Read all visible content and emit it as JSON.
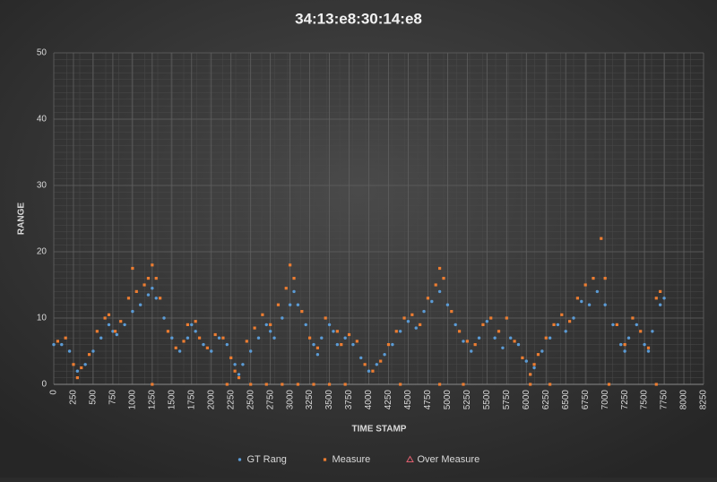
{
  "chart_data": {
    "type": "scatter",
    "title": "34:13:e8:30:14:e8",
    "x_label": "TIME STAMP",
    "y_label": "RANGE",
    "xlim": [
      0,
      8250
    ],
    "xticks": [
      0,
      250,
      500,
      750,
      1000,
      1250,
      1500,
      1750,
      2000,
      2250,
      2500,
      2750,
      3000,
      3250,
      3500,
      3750,
      4000,
      4250,
      4500,
      4750,
      5000,
      5250,
      5500,
      5750,
      6000,
      6250,
      6500,
      6750,
      7000,
      7250,
      7500,
      7750,
      8000,
      8250
    ],
    "ylim": [
      0,
      50
    ],
    "yticks": [
      0,
      10,
      20,
      30,
      40,
      50
    ],
    "grid": true,
    "legend": "bottom",
    "series": [
      {
        "name": "GT Rang",
        "color": "#5b9bd5",
        "marker": "circle",
        "x": [
          0,
          100,
          200,
          300,
          400,
          500,
          600,
          700,
          750,
          800,
          900,
          1000,
          1100,
          1200,
          1250,
          1300,
          1400,
          1500,
          1600,
          1700,
          1750,
          1800,
          1900,
          2000,
          2100,
          2200,
          2300,
          2350,
          2400,
          2500,
          2600,
          2700,
          2750,
          2800,
          2900,
          3000,
          3050,
          3100,
          3200,
          3300,
          3350,
          3400,
          3500,
          3550,
          3600,
          3700,
          3800,
          3900,
          4000,
          4100,
          4200,
          4300,
          4400,
          4500,
          4600,
          4700,
          4800,
          4900,
          5000,
          5100,
          5200,
          5300,
          5400,
          5500,
          5600,
          5700,
          5800,
          5900,
          6000,
          6050,
          6100,
          6200,
          6300,
          6400,
          6500,
          6600,
          6700,
          6800,
          6900,
          7000,
          7100,
          7200,
          7250,
          7300,
          7400,
          7500,
          7550,
          7600,
          7700,
          7750
        ],
        "values": [
          6,
          6,
          5,
          2,
          3,
          5,
          7,
          9,
          8,
          7.5,
          9,
          11,
          12,
          13.5,
          14.5,
          13,
          10,
          7,
          5,
          7,
          9,
          8,
          6,
          5,
          7,
          6,
          3,
          1.5,
          3,
          5,
          7,
          9,
          8,
          7,
          10,
          12,
          14,
          12,
          9,
          6,
          4.5,
          7,
          9,
          8,
          6,
          7,
          6,
          4,
          2,
          3,
          4.5,
          6,
          8,
          9.5,
          8.5,
          11,
          12.5,
          14,
          12,
          9,
          6.5,
          5,
          7,
          9.5,
          7,
          5.5,
          7,
          6,
          3.5,
          1.5,
          2.5,
          5,
          7,
          9,
          8,
          10,
          12.5,
          12,
          14,
          12,
          9,
          6,
          5,
          7,
          9,
          6,
          5,
          8,
          12,
          13
        ]
      },
      {
        "name": "Measure",
        "color": "#ed7d31",
        "marker": "square",
        "x": [
          50,
          150,
          250,
          300,
          350,
          450,
          550,
          650,
          700,
          780,
          850,
          950,
          1000,
          1050,
          1150,
          1200,
          1250,
          1250,
          1300,
          1350,
          1450,
          1550,
          1650,
          1700,
          1800,
          1850,
          1950,
          2050,
          2150,
          2200,
          2250,
          2300,
          2350,
          2450,
          2500,
          2550,
          2650,
          2700,
          2750,
          2850,
          2900,
          2950,
          3000,
          3050,
          3100,
          3150,
          3250,
          3300,
          3350,
          3450,
          3500,
          3600,
          3650,
          3700,
          3750,
          3850,
          3950,
          4050,
          4150,
          4250,
          4350,
          4400,
          4450,
          4550,
          4650,
          4750,
          4850,
          4900,
          4900,
          4950,
          5050,
          5150,
          5200,
          5250,
          5350,
          5450,
          5550,
          5650,
          5750,
          5850,
          5950,
          6050,
          6050,
          6100,
          6150,
          6250,
          6300,
          6350,
          6450,
          6550,
          6650,
          6750,
          6850,
          6950,
          7000,
          7050,
          7150,
          7250,
          7350,
          7450,
          7550,
          7650,
          7650,
          7700
        ],
        "values": [
          6.5,
          7,
          3,
          1,
          2.5,
          4.5,
          8,
          10,
          10.5,
          8,
          9.5,
          13,
          17.5,
          14,
          15,
          16,
          18,
          0,
          16,
          13,
          8,
          5.5,
          6.5,
          9,
          9.5,
          7,
          5.5,
          7.5,
          7,
          0,
          4,
          2,
          1,
          6.5,
          0,
          8.5,
          10.5,
          0,
          9,
          12,
          0,
          14.5,
          18,
          16,
          0,
          11,
          7,
          0,
          5.5,
          10,
          0,
          8,
          6,
          0,
          7.5,
          6.5,
          3,
          2,
          3.5,
          6,
          8,
          0,
          10,
          10.5,
          9,
          13,
          15,
          0,
          17.5,
          16,
          11,
          8,
          0,
          6.5,
          6,
          9,
          10,
          8,
          10,
          6.5,
          4,
          1.5,
          0,
          3,
          4.5,
          7,
          0,
          9,
          10.5,
          9.5,
          13,
          15,
          16,
          22,
          16,
          0,
          9,
          6,
          10,
          8,
          5.5,
          13,
          0,
          14
        ]
      },
      {
        "name": "Over Measure",
        "color": "#e06070",
        "marker": "triangle",
        "x": [],
        "values": []
      }
    ]
  }
}
